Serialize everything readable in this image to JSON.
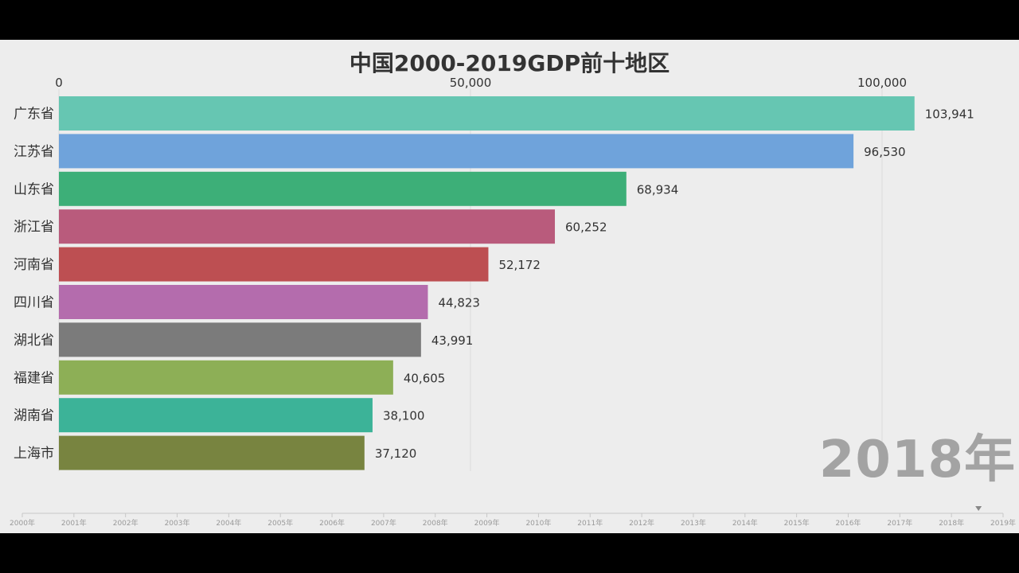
{
  "chart_data": {
    "type": "bar",
    "orientation": "horizontal",
    "title": "中国2000-2019GDP前十地区",
    "current_year": "2018年",
    "x_ticks": [
      {
        "value": 0,
        "label": "0"
      },
      {
        "value": 50000,
        "label": "50,000"
      },
      {
        "value": 100000,
        "label": "100,000"
      }
    ],
    "xlim": [
      0,
      100000
    ],
    "bars": [
      {
        "category": "广东省",
        "value": 103941,
        "label": "103,941",
        "color": "#66c6b2"
      },
      {
        "category": "江苏省",
        "value": 96530,
        "label": "96,530",
        "color": "#6fa3db"
      },
      {
        "category": "山东省",
        "value": 68934,
        "label": "68,934",
        "color": "#3daf78"
      },
      {
        "category": "浙江省",
        "value": 60252,
        "label": "60,252",
        "color": "#b95b7c"
      },
      {
        "category": "河南省",
        "value": 52172,
        "label": "52,172",
        "color": "#bd4f52"
      },
      {
        "category": "四川省",
        "value": 44823,
        "label": "44,823",
        "color": "#b46cad"
      },
      {
        "category": "湖北省",
        "value": 43991,
        "label": "43,991",
        "color": "#7b7b7b"
      },
      {
        "category": "福建省",
        "value": 40605,
        "label": "40,605",
        "color": "#8daf56"
      },
      {
        "category": "湖南省",
        "value": 38100,
        "label": "38,100",
        "color": "#3cb398"
      },
      {
        "category": "上海市",
        "value": 37120,
        "label": "37,120",
        "color": "#788440"
      }
    ],
    "timeline": {
      "labels": [
        "2000年",
        "2001年",
        "2002年",
        "2003年",
        "2004年",
        "2005年",
        "2006年",
        "2007年",
        "2008年",
        "2009年",
        "2010年",
        "2011年",
        "2012年",
        "2013年",
        "2014年",
        "2015年",
        "2016年",
        "2017年",
        "2018年",
        "2019年"
      ],
      "current": "2018年"
    }
  }
}
